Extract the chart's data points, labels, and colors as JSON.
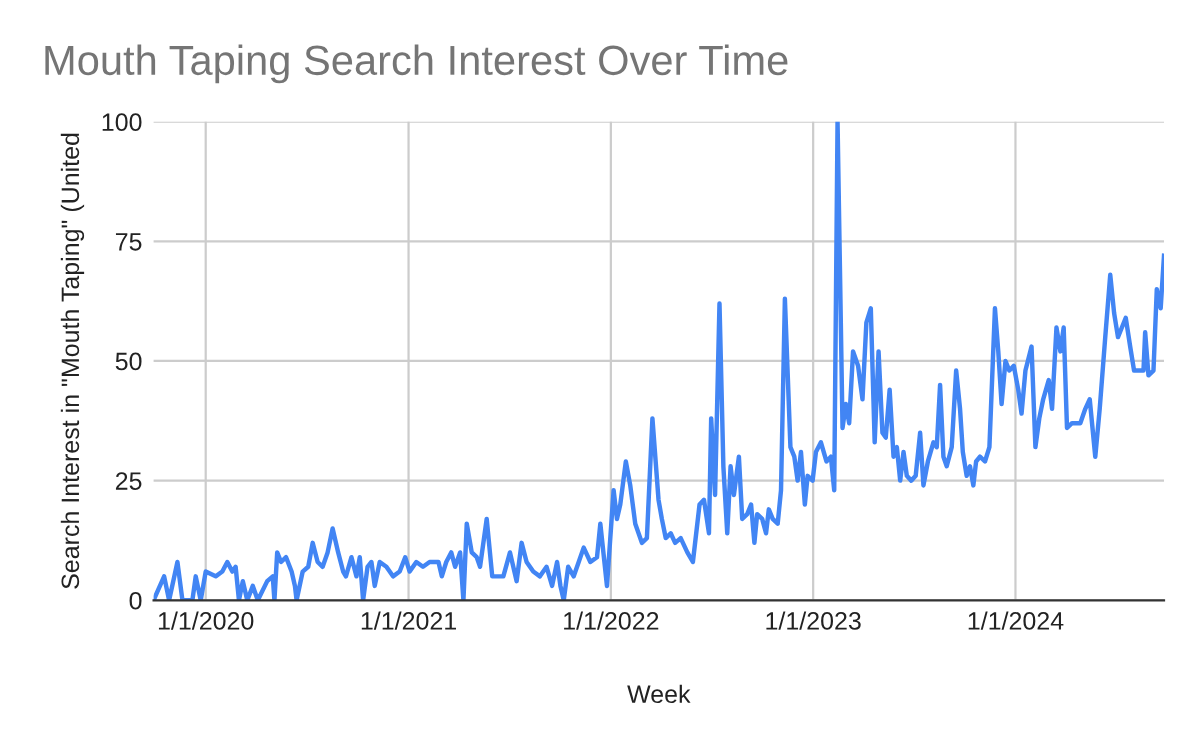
{
  "chart_data": {
    "type": "line",
    "title": "Mouth Taping Search Interest Over Time",
    "xlabel": "Week",
    "ylabel": "Search Interest in \"Mouth Taping\" (United",
    "x": [
      "2019-09-29",
      "2019-10-18",
      "2019-10-27",
      "2019-11-11",
      "2019-11-20",
      "2019-12-08",
      "2019-12-14",
      "2019-12-23",
      "2020-01-01",
      "2020-01-19",
      "2020-01-31",
      "2020-02-09",
      "2020-02-18",
      "2020-02-24",
      "2020-03-01",
      "2020-03-08",
      "2020-03-16",
      "2020-03-26",
      "2020-04-04",
      "2020-04-21",
      "2020-05-01",
      "2020-05-04",
      "2020-05-09",
      "2020-05-16",
      "2020-05-25",
      "2020-06-04",
      "2020-06-10",
      "2020-06-13",
      "2020-06-24",
      "2020-07-04",
      "2020-07-12",
      "2020-07-21",
      "2020-07-30",
      "2020-08-08",
      "2020-08-17",
      "2020-08-27",
      "2020-09-05",
      "2020-09-10",
      "2020-09-20",
      "2020-09-29",
      "2020-10-05",
      "2020-10-11",
      "2020-10-19",
      "2020-10-26",
      "2020-11-01",
      "2020-11-10",
      "2020-11-22",
      "2020-12-04",
      "2020-12-16",
      "2020-12-26",
      "2021-01-03",
      "2021-01-15",
      "2021-01-27",
      "2021-02-08",
      "2021-02-24",
      "2021-03-02",
      "2021-03-10",
      "2021-03-19",
      "2021-03-26",
      "2021-04-04",
      "2021-04-10",
      "2021-04-16",
      "2021-04-25",
      "2021-05-04",
      "2021-05-10",
      "2021-05-22",
      "2021-06-01",
      "2021-06-21",
      "2021-07-03",
      "2021-07-15",
      "2021-07-24",
      "2021-08-02",
      "2021-08-14",
      "2021-08-26",
      "2021-09-07",
      "2021-09-17",
      "2021-09-26",
      "2021-10-02",
      "2021-10-08",
      "2021-10-16",
      "2021-10-26",
      "2021-11-04",
      "2021-11-13",
      "2021-11-25",
      "2021-12-07",
      "2021-12-13",
      "2021-12-25",
      "2022-01-06",
      "2022-01-12",
      "2022-01-18",
      "2022-01-28",
      "2022-02-05",
      "2022-02-14",
      "2022-02-26",
      "2022-03-07",
      "2022-03-17",
      "2022-03-28",
      "2022-04-03",
      "2022-04-10",
      "2022-04-19",
      "2022-04-27",
      "2022-05-07",
      "2022-05-19",
      "2022-05-29",
      "2022-06-10",
      "2022-06-18",
      "2022-06-27",
      "2022-07-01",
      "2022-07-08",
      "2022-07-16",
      "2022-07-23",
      "2022-07-30",
      "2022-08-05",
      "2022-08-11",
      "2022-08-20",
      "2022-08-26",
      "2022-09-04",
      "2022-09-11",
      "2022-09-17",
      "2022-09-22",
      "2022-10-01",
      "2022-10-08",
      "2022-10-13",
      "2022-10-20",
      "2022-10-29",
      "2022-11-04",
      "2022-11-11",
      "2022-11-21",
      "2022-11-28",
      "2022-12-04",
      "2022-12-10",
      "2022-12-17",
      "2022-12-22",
      "2022-12-31",
      "2023-01-06",
      "2023-01-15",
      "2023-01-25",
      "2023-02-02",
      "2023-02-08",
      "2023-02-14",
      "2023-02-23",
      "2023-03-01",
      "2023-03-07",
      "2023-03-14",
      "2023-03-23",
      "2023-03-31",
      "2023-04-07",
      "2023-04-15",
      "2023-04-22",
      "2023-04-29",
      "2023-05-06",
      "2023-05-12",
      "2023-05-19",
      "2023-05-26",
      "2023-06-01",
      "2023-06-07",
      "2023-06-13",
      "2023-06-19",
      "2023-06-27",
      "2023-07-05",
      "2023-07-13",
      "2023-07-19",
      "2023-07-27",
      "2023-08-06",
      "2023-08-12",
      "2023-08-18",
      "2023-08-24",
      "2023-08-30",
      "2023-09-08",
      "2023-09-16",
      "2023-09-23",
      "2023-09-28",
      "2023-10-05",
      "2023-10-11",
      "2023-10-17",
      "2023-10-22",
      "2023-10-29",
      "2023-11-07",
      "2023-11-15",
      "2023-11-25",
      "2023-12-01",
      "2023-12-07",
      "2023-12-14",
      "2023-12-21",
      "2023-12-29",
      "2024-01-06",
      "2024-01-12",
      "2024-01-19",
      "2024-01-30",
      "2024-02-06",
      "2024-02-13",
      "2024-02-20",
      "2024-03-01",
      "2024-03-07",
      "2024-03-15",
      "2024-03-22",
      "2024-03-28",
      "2024-04-03",
      "2024-04-12",
      "2024-04-27",
      "2024-05-06",
      "2024-05-14",
      "2024-05-24",
      "2024-06-01",
      "2024-06-11",
      "2024-06-20",
      "2024-06-27",
      "2024-07-04",
      "2024-07-11",
      "2024-07-18",
      "2024-07-26",
      "2024-08-02",
      "2024-08-19",
      "2024-08-22",
      "2024-08-28",
      "2024-09-06",
      "2024-09-12",
      "2024-09-19",
      "2024-09-25"
    ],
    "series": [
      {
        "color": "#4285f4",
        "values": [
          0,
          5,
          0,
          8,
          0,
          0,
          5,
          0,
          6,
          5,
          6,
          8,
          6,
          7,
          0,
          4,
          0,
          3,
          0,
          4,
          5,
          0,
          10,
          8,
          9,
          6,
          3,
          0,
          6,
          7,
          12,
          8,
          7,
          10,
          15,
          10,
          6,
          5,
          9,
          5,
          9,
          0,
          7,
          8,
          3,
          8,
          7,
          5,
          6,
          9,
          6,
          8,
          7,
          8,
          8,
          5,
          8,
          10,
          7,
          10,
          0,
          16,
          10,
          9,
          7,
          17,
          5,
          5,
          10,
          4,
          12,
          8,
          6,
          5,
          7,
          3,
          8,
          3,
          0,
          7,
          5,
          8,
          11,
          8,
          9,
          16,
          3,
          23,
          17,
          20,
          29,
          24,
          16,
          12,
          13,
          38,
          21,
          17,
          13,
          14,
          12,
          13,
          10,
          8,
          20,
          21,
          14,
          38,
          22,
          62,
          28,
          14,
          28,
          22,
          30,
          17,
          18,
          20,
          12,
          18,
          17,
          14,
          19,
          17,
          16,
          23,
          63,
          32,
          30,
          25,
          31,
          20,
          26,
          25,
          31,
          33,
          29,
          30,
          23,
          100,
          36,
          41,
          37,
          52,
          49,
          42,
          58,
          61,
          33,
          52,
          35,
          34,
          44,
          30,
          32,
          25,
          31,
          26,
          25,
          26,
          35,
          24,
          29,
          33,
          32,
          45,
          30,
          28,
          32,
          48,
          40,
          31,
          26,
          28,
          24,
          29,
          30,
          29,
          32,
          61,
          52,
          41,
          50,
          48,
          49,
          44,
          39,
          48,
          53,
          32,
          38,
          42,
          46,
          40,
          57,
          52,
          57,
          36,
          37,
          37,
          40,
          42,
          30,
          40,
          55,
          68,
          60,
          55,
          57,
          59,
          53,
          48,
          48,
          56,
          47,
          48,
          65,
          61,
          72
        ]
      }
    ],
    "xlim": [
      "2019-09-29",
      "2024-09-25"
    ],
    "xticks": [
      {
        "value": "2020-01-01",
        "label": "1/1/2020"
      },
      {
        "value": "2021-01-01",
        "label": "1/1/2021"
      },
      {
        "value": "2022-01-01",
        "label": "1/1/2022"
      },
      {
        "value": "2023-01-01",
        "label": "1/1/2023"
      },
      {
        "value": "2024-01-01",
        "label": "1/1/2024"
      }
    ],
    "ylim": [
      0,
      100
    ],
    "yticks": [
      0,
      25,
      50,
      75,
      100
    ],
    "grid": true,
    "marker": "none",
    "line_style": "solid"
  }
}
